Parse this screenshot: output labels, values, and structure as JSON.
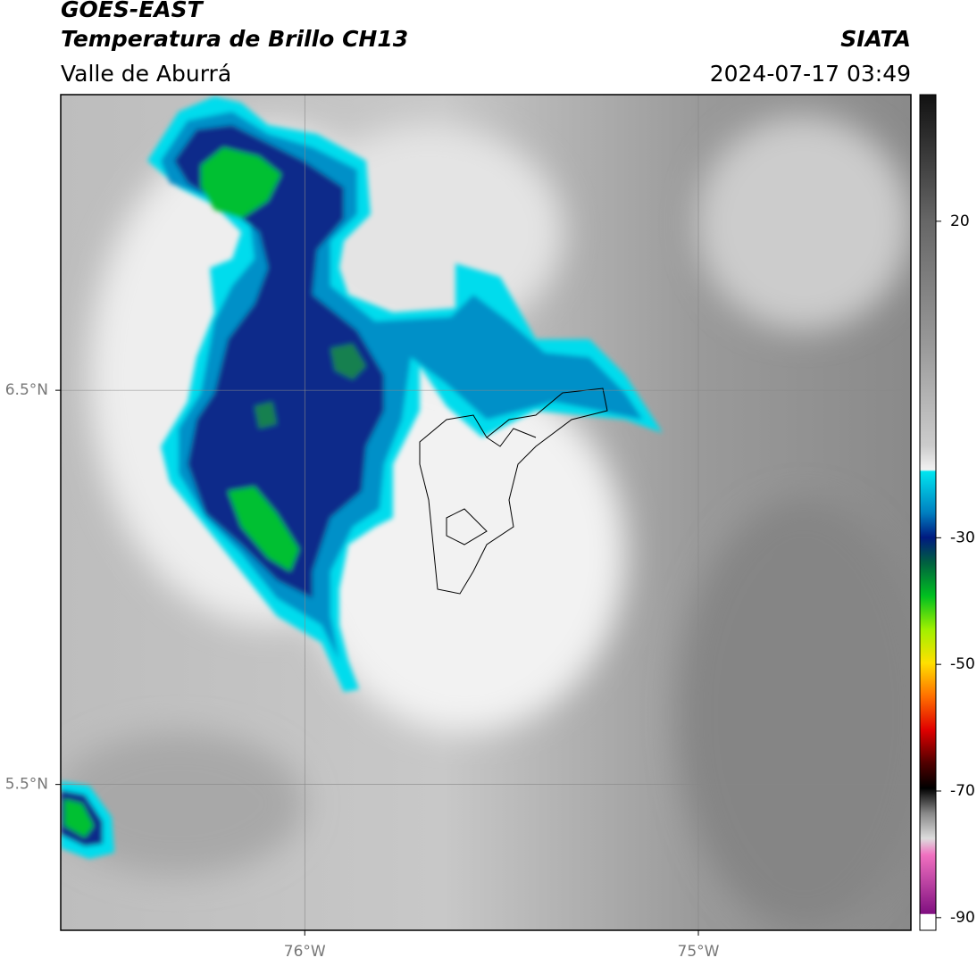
{
  "header": {
    "title": "GOES-EAST",
    "subtitle": "Temperatura de Brillo CH13",
    "region": "Valle de Aburrá",
    "source": "SIATA",
    "timestamp": "2024-07-17 03:49"
  },
  "map": {
    "xlim": [
      -76.62,
      -74.46
    ],
    "ylim": [
      5.13,
      7.25
    ],
    "xticks": [
      {
        "value": -76,
        "label": "76°W"
      },
      {
        "value": -75,
        "label": "75°W"
      }
    ],
    "yticks": [
      {
        "value": 6.5,
        "label": "6.5°N"
      },
      {
        "value": 5.5,
        "label": "5.5°N"
      }
    ],
    "grid": true
  },
  "colorbar": {
    "lim": [
      -92,
      40
    ],
    "ticks": [
      20,
      -30,
      -50,
      -70,
      -90
    ]
  }
}
